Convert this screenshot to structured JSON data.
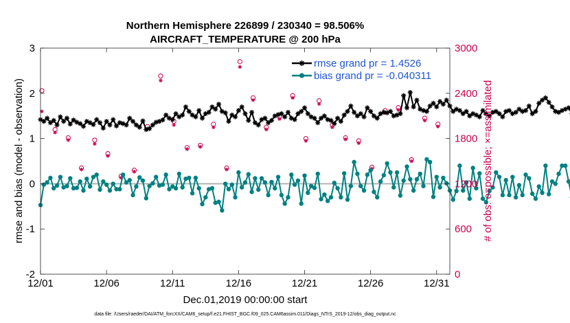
{
  "chart_data": {
    "type": "line",
    "title_line1": "Northern Hemisphere 226899 / 230340 = 98.506%",
    "title_line2": "AIRCRAFT_TEMPERATURE @ 200 hPa",
    "xlabel": "Dec.01,2019 00:00:00 start",
    "ylabel_left": "rmse and bias (model - observation)",
    "ylabel_right": "# of obs: o=possible; ×=assimilated",
    "footnote": "data file: /Users/raeder/DAI/ATM_forcXX/CAM6_setup/f.e21.FHIST_BGC.f09_025.CAM6assim.011/Diags_NTrS_2019-12/obs_diag_output.nc",
    "xlim": [
      1,
      32
    ],
    "ylim_left": [
      -2,
      3
    ],
    "ylim_right": [
      0,
      3000
    ],
    "x_ticks": [
      1,
      6,
      11,
      16,
      21,
      26,
      31
    ],
    "x_tick_labels": [
      "12/01",
      "12/06",
      "12/11",
      "12/16",
      "12/21",
      "12/26",
      "12/31"
    ],
    "y_ticks_left": [
      -2,
      -1,
      0,
      1,
      2,
      3
    ],
    "y_tick_labels_left": [
      "-2",
      "-1",
      "0",
      "1",
      "2",
      "3"
    ],
    "y_ticks_right": [
      0,
      600,
      1200,
      1800,
      2400,
      3000
    ],
    "y_tick_labels_right": [
      "0",
      "600",
      "1200",
      "1800",
      "2400",
      "3000"
    ],
    "legend": [
      {
        "name": "rmse grand pr = 1.4526",
        "color": "#000000",
        "marker": "asterisk"
      },
      {
        "name": "bias grand pr = -0.040311",
        "color": "#008080",
        "marker": "circle"
      }
    ],
    "colors": {
      "rmse": "#000000",
      "bias": "#008080",
      "obs": "#c8004d",
      "zero_line": "#b4b4b4"
    },
    "series": [
      {
        "name": "rmse",
        "x_start": 1,
        "x_step": 0.25,
        "values": [
          1.42,
          1.38,
          1.45,
          1.35,
          1.4,
          1.3,
          1.48,
          1.38,
          1.45,
          1.32,
          1.41,
          1.36,
          1.33,
          1.27,
          1.38,
          1.35,
          1.31,
          1.42,
          1.35,
          1.23,
          1.38,
          1.3,
          1.42,
          1.28,
          1.35,
          1.33,
          1.3,
          1.45,
          1.38,
          1.3,
          1.25,
          1.39,
          1.2,
          1.22,
          1.3,
          1.36,
          1.38,
          1.41,
          1.52,
          1.45,
          1.42,
          1.55,
          1.48,
          1.52,
          1.7,
          1.6,
          1.52,
          1.48,
          1.62,
          1.45,
          1.55,
          1.58,
          1.7,
          1.65,
          1.76,
          1.6,
          1.57,
          1.38,
          1.52,
          1.48,
          1.62,
          1.7,
          1.55,
          1.4,
          1.58,
          1.35,
          1.3,
          1.42,
          1.45,
          1.35,
          1.4,
          1.5,
          1.53,
          1.55,
          1.48,
          1.58,
          1.45,
          1.42,
          1.55,
          1.6,
          1.68,
          1.55,
          1.48,
          1.45,
          1.35,
          1.45,
          1.5,
          1.42,
          1.4,
          1.33,
          1.45,
          1.38,
          1.52,
          1.6,
          1.72,
          1.58,
          1.5,
          1.55,
          1.48,
          1.68,
          1.6,
          1.5,
          1.45,
          1.55,
          1.58,
          1.57,
          1.6,
          1.5,
          1.52,
          1.55,
          1.95,
          1.68,
          2.02,
          1.7,
          1.85,
          1.65,
          1.62,
          1.6,
          1.72,
          1.78,
          1.7,
          1.82,
          1.76,
          1.85,
          1.72,
          1.6,
          1.65,
          1.62,
          1.55,
          1.6,
          1.5,
          1.55,
          1.52,
          1.48,
          1.62,
          1.55,
          1.5,
          1.58,
          1.6,
          1.55,
          1.48,
          1.6,
          1.62,
          1.55,
          1.58,
          1.65,
          1.6,
          1.62,
          1.72,
          1.55,
          1.6,
          1.78,
          1.85,
          1.9,
          1.8,
          1.7,
          1.6,
          1.58,
          1.62,
          1.65,
          1.68,
          1.55,
          1.48,
          1.52,
          1.5,
          1.62,
          1.55,
          1.48,
          1.42,
          1.45,
          1.4,
          1.38,
          1.35,
          1.45,
          1.32,
          1.28,
          1.36,
          1.3,
          1.26,
          1.32,
          1.25,
          1.2,
          1.24,
          1.15,
          1.38,
          1.2,
          1.1,
          1.45,
          1.55,
          1.35,
          1.38,
          1.42,
          1.4
        ]
      },
      {
        "name": "bias",
        "x_start": 1,
        "x_step": 0.25,
        "values": [
          -0.47,
          -0.02,
          0.03,
          0.13,
          -0.1,
          -0.04,
          0.15,
          -0.08,
          -0.05,
          0.12,
          -0.1,
          -0.09,
          0.05,
          -0.15,
          0.11,
          -0.06,
          0.15,
          0.2,
          -0.13,
          0.05,
          -0.02,
          -0.15,
          0.0,
          -0.12,
          -0.12,
          0.2,
          0.03,
          0.08,
          -0.25,
          -0.06,
          0.14,
          0.07,
          -0.32,
          -0.05,
          0.01,
          0.15,
          -0.04,
          -0.02,
          0.2,
          -0.12,
          -0.06,
          -0.1,
          0.22,
          -0.08,
          0.11,
          0.13,
          -0.21,
          0.13,
          -0.1,
          -0.45,
          -0.3,
          -0.12,
          -0.1,
          -0.42,
          -0.4,
          -0.59,
          0.0,
          -0.12,
          -0.02,
          -0.3,
          0.25,
          -0.08,
          0.03,
          0.21,
          -0.18,
          0.12,
          -0.13,
          0.12,
          0.03,
          -0.25,
          0.04,
          -0.1,
          0.15,
          -0.25,
          -0.44,
          -0.3,
          0.2,
          -0.02,
          0.07,
          -0.44,
          0.18,
          -0.2,
          -0.05,
          -0.09,
          0.22,
          -0.34,
          -0.24,
          -0.38,
          -0.3,
          0.02,
          -0.1,
          -0.3,
          0.23,
          -0.35,
          -0.05,
          0.48,
          0.22,
          -0.05,
          -0.15,
          0.2,
          0.3,
          -0.18,
          -0.3,
          0.05,
          0.19,
          0.45,
          0.25,
          -0.08,
          0.25,
          -0.26,
          0.07,
          0.38,
          0.1,
          -0.15,
          0.1,
          0.22,
          -0.05,
          0.54,
          0.48,
          -0.29,
          0.15,
          -0.08,
          0.13,
          0.01,
          -0.15,
          -0.35,
          -0.16,
          0.4,
          -0.15,
          0.03,
          -0.33,
          0.35,
          -0.1,
          0.23,
          -0.33,
          -0.41,
          -0.16,
          -0.08,
          0.25,
          0.15,
          -0.25,
          0.08,
          -0.25,
          0.15,
          -0.3,
          -0.03,
          -0.25,
          0.2,
          0.12,
          -0.22,
          -0.33,
          -0.06,
          -0.2,
          0.4,
          -0.23,
          0.05,
          0.0,
          0.22,
          0.4,
          0.4,
          0.05,
          -0.3,
          -0.28,
          0.25,
          0.08,
          -0.2,
          -0.3,
          0.02,
          -0.72,
          0.22,
          -0.08,
          0.22,
          0.05,
          -0.2,
          -0.05,
          0.1,
          -0.17,
          0.35,
          -0.05,
          -0.14,
          0.25,
          -0.2,
          0.08,
          -0.3,
          0.07,
          0.15,
          -0.08,
          -0.05,
          -0.22,
          0.0,
          -0.1,
          -0.18,
          -0.4,
          -0.1,
          -0.25,
          0.02,
          0.15,
          0.05,
          0.08,
          0.05
        ]
      },
      {
        "name": "obs_possible",
        "x_start": 1.1,
        "x_step": 1,
        "values": [
          2435,
          1920,
          1810,
          1410,
          1780,
          1600,
          1300,
          1380,
          1960,
          2630,
          2030,
          1680,
          1710,
          1990,
          1410,
          2820,
          2340,
          1950,
          2090,
          2370,
          1800,
          2300,
          1980,
          1810,
          1770,
          1420,
          2170,
          2210,
          1520,
          2070,
          1990
        ]
      },
      {
        "name": "obs_assimilated",
        "x_start": 1.1,
        "x_step": 1,
        "values": [
          2160,
          1880,
          1780,
          1390,
          1730,
          1570,
          1280,
          1360,
          1930,
          2570,
          1980,
          1660,
          1690,
          1950,
          1390,
          2750,
          2310,
          1920,
          2060,
          2340,
          1770,
          2260,
          1950,
          1790,
          1740,
          1400,
          2140,
          2180,
          1500,
          2040,
          1960
        ]
      }
    ]
  }
}
